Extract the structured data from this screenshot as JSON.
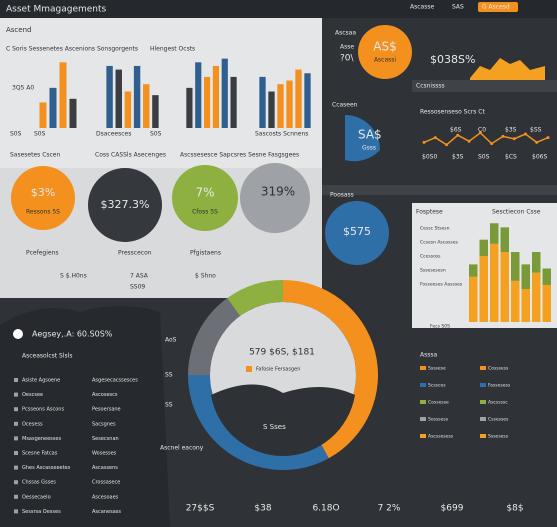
{
  "header": {
    "title": "Asset Mmagagements",
    "nav": [
      "Ascasse",
      "SAS",
      "G Ascesd"
    ]
  },
  "top_panel": {
    "title": "Ascend",
    "subtitle": "C Soris Sessenetes Ascenions Sonsgorgents",
    "note": "Hlengest Ocsts",
    "label": "3Q5 A0",
    "axis_labels": [
      "S0S",
      "S0S",
      "Dsaceesces",
      "S0S",
      "Sascosts Scnnens"
    ],
    "captions": [
      "Sasesetes Cscen",
      "Coss CASSls Asecenges",
      "Ascssesesce Sapcsres Sesne Fasgsgees"
    ]
  },
  "kpis": [
    {
      "value": "$3%",
      "label": "Ressons 5S"
    },
    {
      "value": "$327.3%"
    },
    {
      "value": "7%",
      "label": "Cfoss 5S"
    },
    {
      "value": "319%"
    }
  ],
  "kpi_captions": [
    "Pcefegiens",
    "Presscecon",
    "Pfgistaens"
  ],
  "kpi_footer": [
    "S $.H0ns",
    "7 ASA",
    "SS09",
    "$ Shno"
  ],
  "right_top": {
    "title": "Ascsaa",
    "badge": "AS$",
    "badge_sub": "Ascassi",
    "left": "Asse",
    "left_num": "?0\\",
    "value": "$038S%",
    "label": "Ccsnissss"
  },
  "right_mid": {
    "title": "Ccaseen",
    "badge": "SA$",
    "badge_sub": "Gsss",
    "subtitle": "Ressosenseso Scrs Ct",
    "line_labels": [
      "$6S",
      "C0",
      "$3S",
      "$SS"
    ],
    "x_labels": [
      "$0S0",
      "$3S",
      "S0S",
      "$CS",
      "$06S"
    ]
  },
  "right_low": {
    "title": "Poosass",
    "badge": "$575",
    "panel_title": "Fosptese",
    "panel_right": "Sesctiecon Csse",
    "list": [
      "Cessc Stsesn",
      "Ccsesn Ascasses",
      "Ccessoss",
      "Sssesesesn",
      "Fosseeses Aassses"
    ],
    "foot": "Fecs S0S"
  },
  "legend": {
    "title": "Asssa",
    "items": [
      "Ssssese",
      "Cosssess",
      "Scssces",
      "Fassesess",
      "Cossesse",
      "Ascssssc",
      "Sosssess",
      "Cssesses",
      "Ascssesess",
      "Sssesess"
    ]
  },
  "bottom_left": {
    "title": "Aegsey,.A: 60.S0S%",
    "subtitle": "Asceasolcst Slsls",
    "rows": [
      [
        "Asiste Agsoene",
        "Asgesecacssesces"
      ],
      [
        "Oescsee",
        "Ascosescs"
      ],
      [
        "Pcsseons Ascons",
        "Pesoersane"
      ],
      [
        "Ocesess",
        "Sacsgnes"
      ],
      [
        "Msasgeneesses",
        "Sesecsnan"
      ],
      [
        "Scesne Fatcas",
        "Wosesses"
      ],
      [
        "Ghes Ascasseeetes",
        "Ascassens"
      ],
      [
        "Chssas Gsses",
        "Crossasece"
      ],
      [
        "Oessecaelo",
        "Ascesoaes"
      ],
      [
        "Sessrsa Oesses",
        "Ascanesass"
      ]
    ]
  },
  "donut": {
    "title": "579 $6S, $181",
    "label": "Fafosie Fersasgen",
    "sub": "S Sses",
    "side": [
      "AoS",
      "SS",
      "SS"
    ]
  },
  "bottom": {
    "title": "Ascnel eacony",
    "numbers": [
      "27$$S",
      "$38",
      "6.18O",
      "7 2%",
      "$699",
      "$8$"
    ]
  },
  "chart_data": [
    {
      "type": "bar",
      "ylim": [
        0,
        100
      ],
      "values": [
        35,
        55,
        90,
        40
      ],
      "colors": [
        "#f4901e",
        "#2f5f8f",
        "#f4901e",
        "#3a3d42"
      ]
    },
    {
      "type": "bar",
      "ylim": [
        0,
        100
      ],
      "values": [
        85,
        80,
        50,
        85,
        60,
        45
      ],
      "colors": [
        "#2f5f8f",
        "#3a3d42",
        "#f4901e",
        "#2f5f8f",
        "#f4901e",
        "#3a3d42"
      ]
    },
    {
      "type": "bar",
      "ylim": [
        0,
        100
      ],
      "values": [
        55,
        90,
        70,
        85,
        95,
        70
      ],
      "colors": [
        "#3a3d42",
        "#2f5f8f",
        "#f4901e",
        "#f4901e",
        "#2f5f8f",
        "#3a3d42"
      ]
    },
    {
      "type": "bar",
      "ylim": [
        0,
        100
      ],
      "values": [
        70,
        50,
        60,
        65,
        80,
        75
      ],
      "colors": [
        "#2f5f8f",
        "#3a3d42",
        "#f4901e",
        "#f4901e",
        "#f4901e",
        "#2f5f8f"
      ]
    },
    {
      "type": "line",
      "ylim": [
        0,
        100
      ],
      "color": "#f4901e",
      "values": [
        40,
        60,
        30,
        70,
        45,
        80,
        35,
        65,
        55,
        75,
        40,
        60
      ]
    },
    {
      "type": "stacked",
      "ylim": [
        0,
        130
      ],
      "series": [
        {
          "color": "#f4a020",
          "values": [
            55,
            80,
            95,
            85,
            50,
            40,
            60,
            45
          ]
        },
        {
          "color": "#7a9a3a",
          "values": [
            15,
            20,
            25,
            30,
            35,
            30,
            25,
            20
          ]
        }
      ]
    },
    {
      "type": "pie",
      "values": [
        42,
        33,
        15,
        10
      ],
      "colors": [
        "#f4901e",
        "#2f6fa8",
        "#6c7076",
        "#8db040"
      ]
    }
  ]
}
